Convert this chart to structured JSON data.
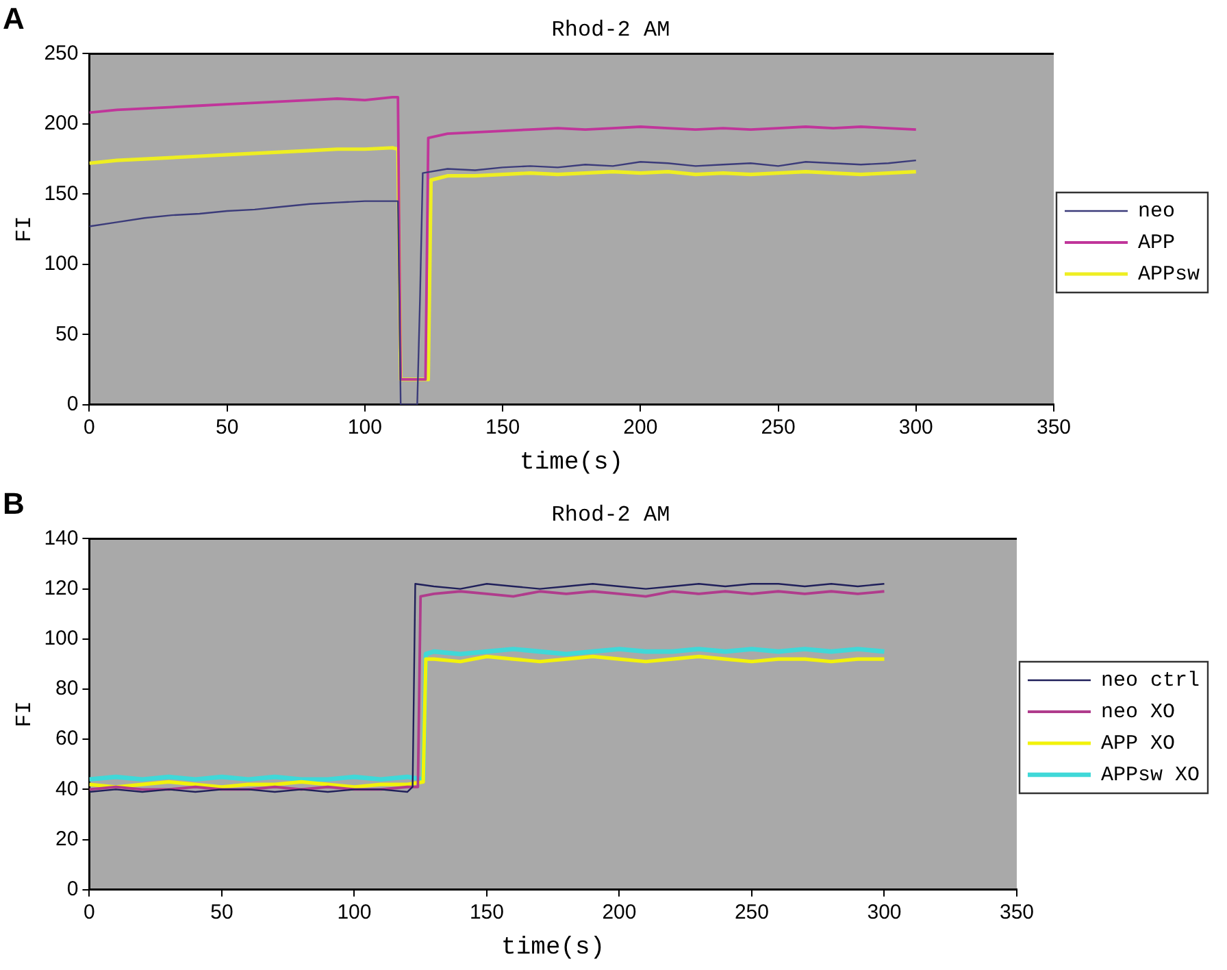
{
  "chart_data": [
    {
      "type": "line",
      "title": "Rhod-2 AM",
      "xlabel": "time(s)",
      "ylabel": "FI",
      "annotations": [
        "A"
      ],
      "xlim": [
        0,
        350
      ],
      "xticks": [
        0,
        50,
        100,
        150,
        200,
        250,
        300,
        350
      ],
      "ylim": [
        0,
        250
      ],
      "yticks": [
        0,
        50,
        100,
        150,
        200,
        250
      ],
      "grid": false,
      "legend": "right",
      "marker": "none",
      "line_style": "solid",
      "series": [
        {
          "name": "neo",
          "color": "#3b3b7a",
          "x": [
            0,
            10,
            20,
            30,
            40,
            50,
            60,
            70,
            80,
            90,
            100,
            110,
            112,
            113,
            119,
            120,
            121,
            130,
            140,
            150,
            160,
            170,
            180,
            190,
            200,
            210,
            220,
            230,
            240,
            250,
            260,
            270,
            280,
            290,
            300
          ],
          "values": [
            127,
            130,
            133,
            135,
            136,
            138,
            139,
            141,
            143,
            144,
            145,
            145,
            145,
            0,
            0,
            75,
            165,
            168,
            167,
            169,
            170,
            169,
            171,
            170,
            173,
            172,
            170,
            171,
            172,
            170,
            173,
            172,
            171,
            172,
            174
          ]
        },
        {
          "name": "APP",
          "color": "#c0359a",
          "x": [
            0,
            10,
            20,
            30,
            40,
            50,
            60,
            70,
            80,
            90,
            100,
            110,
            112,
            113,
            122,
            123,
            130,
            140,
            150,
            160,
            170,
            180,
            190,
            200,
            210,
            220,
            230,
            240,
            250,
            260,
            270,
            280,
            290,
            300
          ],
          "values": [
            208,
            210,
            211,
            212,
            213,
            214,
            215,
            216,
            217,
            218,
            217,
            219,
            219,
            18,
            18,
            190,
            193,
            194,
            195,
            196,
            197,
            196,
            197,
            198,
            197,
            196,
            197,
            196,
            197,
            198,
            197,
            198,
            197,
            196
          ]
        },
        {
          "name": "APPsw",
          "color": "#eeee22",
          "x": [
            0,
            10,
            20,
            30,
            40,
            50,
            60,
            70,
            80,
            90,
            100,
            110,
            112,
            113,
            123,
            124,
            130,
            140,
            150,
            160,
            170,
            180,
            190,
            200,
            210,
            220,
            230,
            240,
            250,
            260,
            270,
            280,
            290,
            300
          ],
          "values": [
            172,
            174,
            175,
            176,
            177,
            178,
            179,
            180,
            181,
            182,
            182,
            183,
            182,
            18,
            18,
            160,
            163,
            163,
            164,
            165,
            164,
            165,
            166,
            165,
            166,
            164,
            165,
            164,
            165,
            166,
            165,
            164,
            165,
            166
          ]
        }
      ]
    },
    {
      "type": "line",
      "title": "Rhod-2 AM",
      "xlabel": "time(s)",
      "ylabel": "FI",
      "annotations": [
        "B"
      ],
      "xlim": [
        0,
        350
      ],
      "xticks": [
        0,
        50,
        100,
        150,
        200,
        250,
        300,
        350
      ],
      "ylim": [
        0,
        140
      ],
      "yticks": [
        0,
        20,
        40,
        60,
        80,
        100,
        120,
        140
      ],
      "grid": false,
      "legend": "right",
      "marker": "none",
      "line_style": "solid",
      "series": [
        {
          "name": "neo ctrl",
          "color": "#1f1f5a",
          "x": [
            0,
            10,
            20,
            30,
            40,
            50,
            60,
            70,
            80,
            90,
            100,
            110,
            120,
            122,
            123,
            130,
            140,
            150,
            160,
            170,
            180,
            190,
            200,
            210,
            220,
            230,
            240,
            250,
            260,
            270,
            280,
            290,
            300
          ],
          "values": [
            39,
            40,
            39,
            40,
            39,
            40,
            40,
            39,
            40,
            39,
            40,
            40,
            39,
            41,
            122,
            121,
            120,
            122,
            121,
            120,
            121,
            122,
            121,
            120,
            121,
            122,
            121,
            122,
            122,
            121,
            122,
            121,
            122
          ]
        },
        {
          "name": "neo XO",
          "color": "#b03c8c",
          "x": [
            0,
            10,
            20,
            30,
            40,
            50,
            60,
            70,
            80,
            90,
            100,
            110,
            120,
            124,
            125,
            130,
            140,
            150,
            160,
            170,
            180,
            190,
            200,
            210,
            220,
            230,
            240,
            250,
            260,
            270,
            280,
            290,
            300
          ],
          "values": [
            40,
            41,
            40,
            40,
            41,
            40,
            40,
            41,
            40,
            41,
            40,
            40,
            41,
            41,
            117,
            118,
            119,
            118,
            117,
            119,
            118,
            119,
            118,
            117,
            119,
            118,
            119,
            118,
            119,
            118,
            119,
            118,
            119
          ]
        },
        {
          "name": "APP XO",
          "color": "#f2f20a",
          "x": [
            0,
            10,
            20,
            30,
            40,
            50,
            60,
            70,
            80,
            90,
            100,
            110,
            120,
            126,
            127,
            130,
            140,
            150,
            160,
            170,
            180,
            190,
            200,
            210,
            220,
            230,
            240,
            250,
            260,
            270,
            280,
            290,
            300
          ],
          "values": [
            42,
            41,
            42,
            43,
            42,
            41,
            42,
            42,
            43,
            42,
            41,
            42,
            42,
            43,
            92,
            92,
            91,
            93,
            92,
            91,
            92,
            93,
            92,
            91,
            92,
            93,
            92,
            91,
            92,
            92,
            91,
            92,
            92
          ]
        },
        {
          "name": "APPsw XO",
          "color": "#40d8d8",
          "x": [
            0,
            10,
            20,
            30,
            40,
            50,
            60,
            70,
            80,
            90,
            100,
            110,
            120,
            126,
            127,
            130,
            140,
            150,
            160,
            170,
            180,
            190,
            200,
            210,
            220,
            230,
            240,
            250,
            260,
            270,
            280,
            290,
            300
          ],
          "values": [
            44,
            45,
            44,
            45,
            44,
            45,
            44,
            45,
            44,
            44,
            45,
            44,
            45,
            44,
            94,
            95,
            94,
            95,
            96,
            95,
            94,
            95,
            96,
            95,
            95,
            96,
            95,
            96,
            95,
            96,
            95,
            96,
            95
          ]
        }
      ]
    }
  ]
}
